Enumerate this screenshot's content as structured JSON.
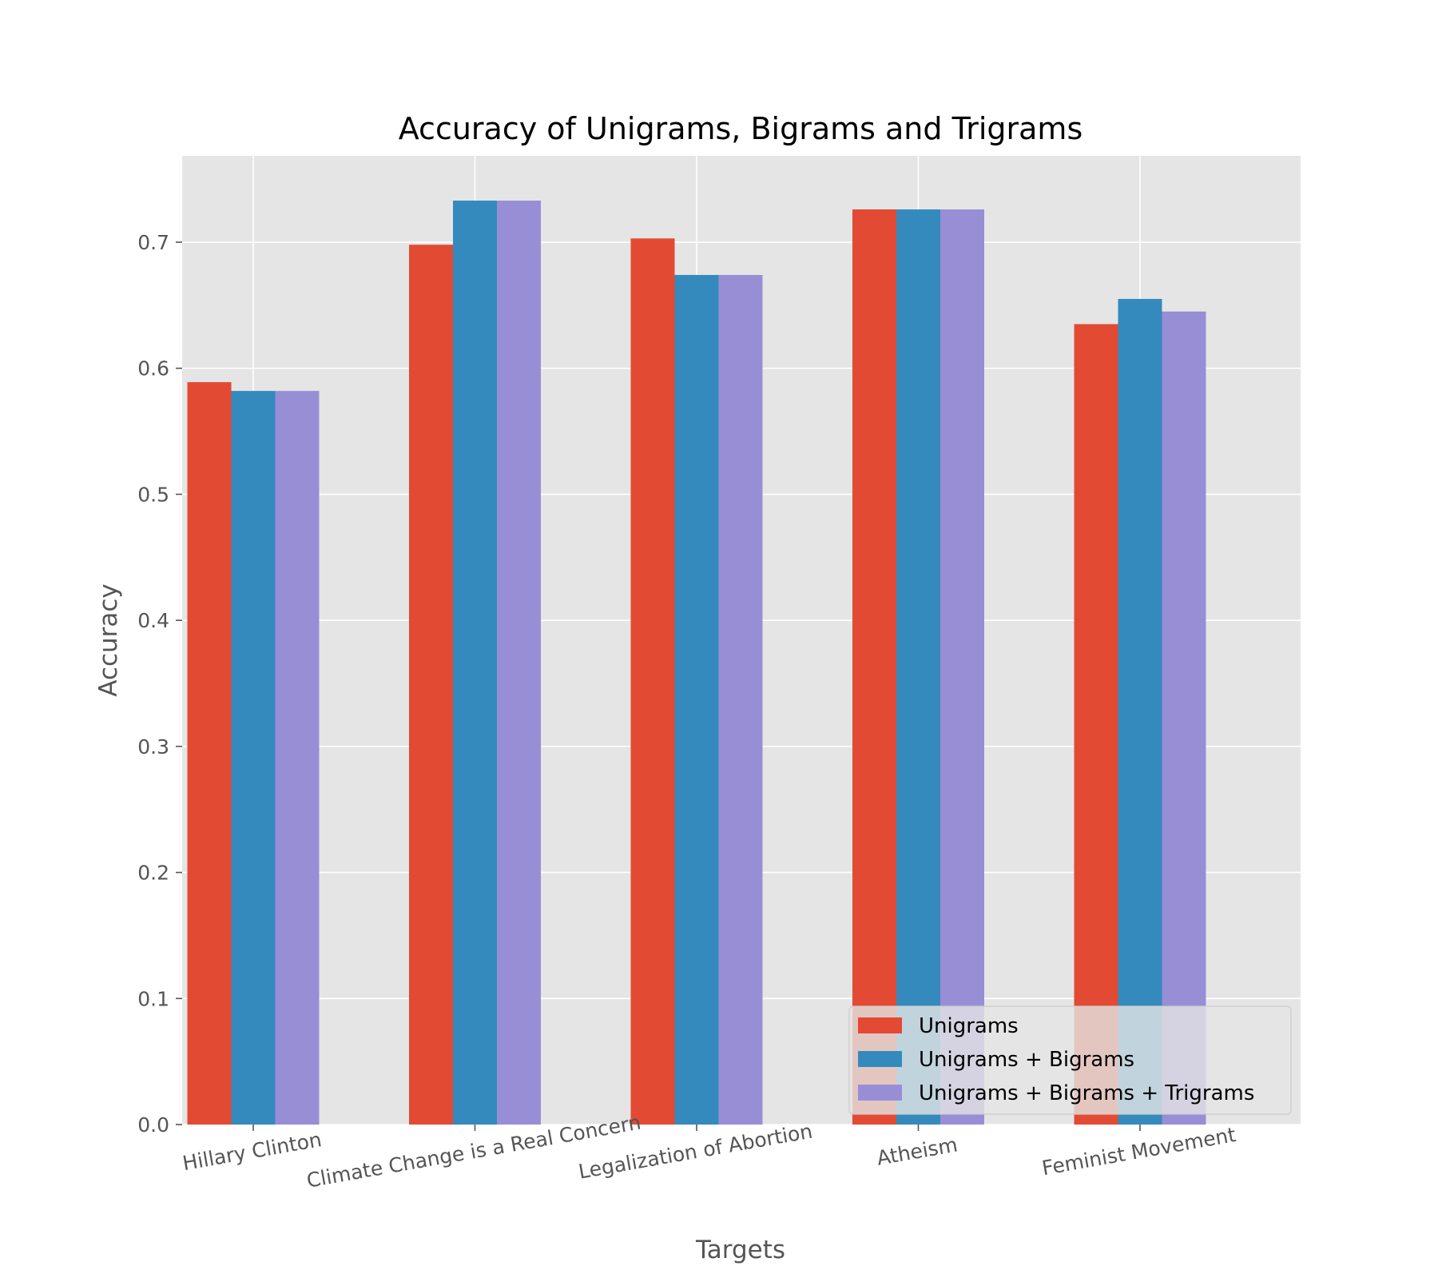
{
  "chart_data": {
    "type": "bar",
    "title": "Accuracy of Unigrams, Bigrams and Trigrams",
    "xlabel": "Targets",
    "ylabel": "Accuracy",
    "categories": [
      "Hillary Clinton",
      "Climate Change is a Real Concern",
      "Legalization of Abortion",
      "Atheism",
      "Feminist Movement"
    ],
    "series": [
      {
        "name": "Unigrams",
        "color": "#E24A33",
        "values": [
          0.589,
          0.698,
          0.703,
          0.726,
          0.635
        ]
      },
      {
        "name": "Unigrams + Bigrams",
        "color": "#348ABD",
        "values": [
          0.582,
          0.733,
          0.674,
          0.726,
          0.655
        ]
      },
      {
        "name": "Unigrams + Bigrams + Trigrams",
        "color": "#988ED5",
        "values": [
          0.582,
          0.733,
          0.674,
          0.726,
          0.645
        ]
      }
    ],
    "ylim": [
      0,
      0.7685
    ],
    "yticks": [
      0.0,
      0.1,
      0.2,
      0.3,
      0.4,
      0.5,
      0.6,
      0.7
    ],
    "ytick_labels": [
      "0.0",
      "0.1",
      "0.2",
      "0.3",
      "0.4",
      "0.5",
      "0.6",
      "0.7"
    ],
    "grid": true,
    "legend_position": "lower-right",
    "background_color": "#E5E5E5",
    "grid_color": "#FFFFFF",
    "text_color": "#555555"
  }
}
